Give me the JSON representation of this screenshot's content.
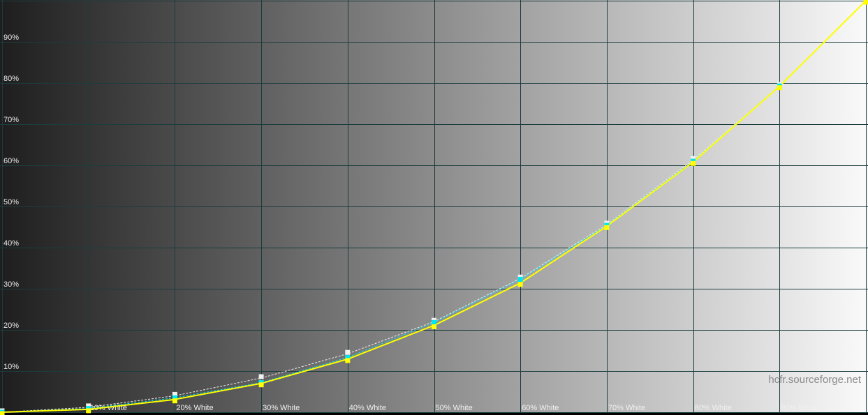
{
  "chart_data": {
    "type": "line",
    "title": "",
    "xlabel": "",
    "ylabel": "",
    "x": [
      0,
      10,
      20,
      30,
      40,
      50,
      60,
      70,
      80,
      90,
      100
    ],
    "x_tick_labels": [
      "",
      "10% White",
      "20% White",
      "30% White",
      "40% White",
      "50% White",
      "60% White",
      "70% White",
      "80% White",
      "90% White"
    ],
    "y_tick_labels": [
      "10%",
      "20%",
      "30%",
      "40%",
      "50%",
      "60%",
      "70%",
      "80%",
      "90%"
    ],
    "xlim": [
      0,
      100
    ],
    "ylim": [
      0,
      100
    ],
    "grid": true,
    "background": "grayscale ramp black to white",
    "series": [
      {
        "color": "#f0f0f0",
        "style": "dashed",
        "marker": "square",
        "values": [
          0,
          1.2,
          4.0,
          8.3,
          14.2,
          22.0,
          32.5,
          45.6,
          61.3,
          79.3,
          100
        ]
      },
      {
        "color": "#00e5f0",
        "style": "dashed",
        "marker": "square",
        "values": [
          0,
          0.9,
          3.5,
          7.2,
          13.3,
          21.8,
          32.3,
          45.4,
          61.0,
          79.3,
          100
        ]
      },
      {
        "color": "#ffff00",
        "style": "solid",
        "marker": "square",
        "values": [
          0,
          0.7,
          3.1,
          7.0,
          12.9,
          21.1,
          31.4,
          45.2,
          60.8,
          79.2,
          100
        ]
      }
    ]
  },
  "watermark": "hcfr.sourceforge.net",
  "colors": {
    "grid": "#1c3c3e",
    "accent": "#ffff00",
    "measured_marker": "#00e5f0"
  }
}
